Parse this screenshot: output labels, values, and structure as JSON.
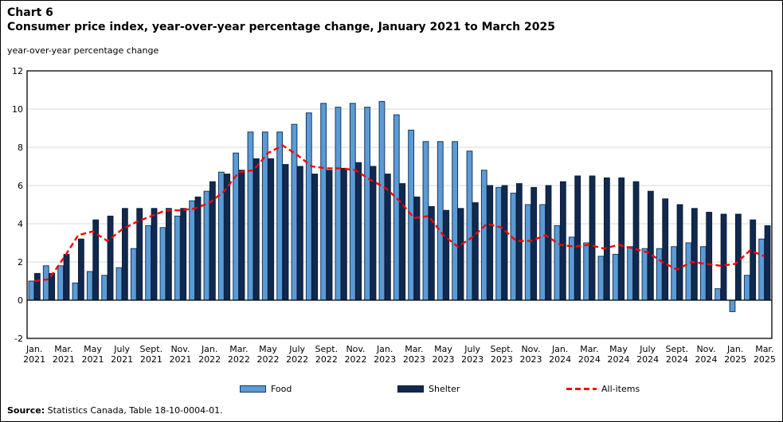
{
  "header": {
    "chart_number": "Chart 6",
    "title": "Consumer price index, year-over-year percentage change, January 2021 to March 2025",
    "axis_caption": "year-over-year percentage change"
  },
  "legend": {
    "items": [
      {
        "label": "Food"
      },
      {
        "label": "Shelter"
      },
      {
        "label": "All-items"
      }
    ]
  },
  "footer": {
    "source_label": "Source:",
    "source_text": "Statistics Canada, Table 18-10-0004-01."
  },
  "colors": {
    "food_fill": "#5B9BD5",
    "food_border": "#17375E",
    "shelter_fill": "#12294E",
    "shelter_border": "#091F3D",
    "all_items_line": "#FF0000",
    "gridline": "#D9D9D9",
    "axis": "#000000"
  },
  "chart_data": {
    "type": "bar",
    "title": "Consumer price index, year-over-year percentage change, January 2021 to March 2025",
    "xlabel": "",
    "ylabel": "year-over-year percentage change",
    "ylim": [
      -2,
      12
    ],
    "y_ticks": [
      12,
      10,
      8,
      6,
      4,
      2,
      0,
      -2
    ],
    "grid": true,
    "legend_position": "bottom",
    "categories": [
      "Jan. 2021",
      "Feb. 2021",
      "Mar. 2021",
      "Apr. 2021",
      "May 2021",
      "June 2021",
      "July 2021",
      "Aug. 2021",
      "Sept. 2021",
      "Oct. 2021",
      "Nov. 2021",
      "Dec. 2021",
      "Jan. 2022",
      "Feb. 2022",
      "Mar. 2022",
      "Apr. 2022",
      "May 2022",
      "June 2022",
      "July 2022",
      "Aug. 2022",
      "Sept. 2022",
      "Oct. 2022",
      "Nov. 2022",
      "Dec. 2022",
      "Jan. 2023",
      "Feb. 2023",
      "Mar. 2023",
      "Apr. 2023",
      "May 2023",
      "June 2023",
      "July 2023",
      "Aug. 2023",
      "Sept. 2023",
      "Oct. 2023",
      "Nov. 2023",
      "Dec. 2023",
      "Jan. 2024",
      "Feb. 2024",
      "Mar. 2024",
      "Apr. 2024",
      "May 2024",
      "June 2024",
      "July 2024",
      "Aug. 2024",
      "Sept. 2024",
      "Oct. 2024",
      "Nov. 2024",
      "Dec. 2024",
      "Jan. 2025",
      "Feb. 2025",
      "Mar. 2025"
    ],
    "series": [
      {
        "name": "Food",
        "type": "bar",
        "values": [
          1.0,
          1.8,
          1.8,
          0.9,
          1.5,
          1.3,
          1.7,
          2.7,
          3.9,
          3.8,
          4.4,
          5.2,
          5.7,
          6.7,
          7.7,
          8.8,
          8.8,
          8.8,
          9.2,
          9.8,
          10.3,
          10.1,
          10.3,
          10.1,
          10.4,
          9.7,
          8.9,
          8.3,
          8.3,
          8.3,
          7.8,
          6.8,
          5.9,
          5.6,
          5.0,
          5.0,
          3.9,
          3.3,
          3.0,
          2.3,
          2.4,
          2.8,
          2.7,
          2.7,
          2.8,
          3.0,
          2.8,
          0.6,
          -0.6,
          1.3,
          3.2
        ]
      },
      {
        "name": "Shelter",
        "type": "bar",
        "values": [
          1.4,
          1.4,
          2.4,
          3.2,
          4.2,
          4.4,
          4.8,
          4.8,
          4.8,
          4.8,
          4.8,
          5.4,
          6.2,
          6.6,
          6.8,
          7.4,
          7.4,
          7.1,
          7.0,
          6.6,
          6.8,
          6.9,
          7.2,
          7.0,
          6.6,
          6.1,
          5.4,
          4.9,
          4.7,
          4.8,
          5.1,
          6.0,
          6.0,
          6.1,
          5.9,
          6.0,
          6.2,
          6.5,
          6.5,
          6.4,
          6.4,
          6.2,
          5.7,
          5.3,
          5.0,
          4.8,
          4.6,
          4.5,
          4.5,
          4.2,
          3.9
        ]
      },
      {
        "name": "All-items",
        "type": "line",
        "style": "dashed",
        "values": [
          1.0,
          1.1,
          2.2,
          3.4,
          3.6,
          3.1,
          3.7,
          4.1,
          4.4,
          4.7,
          4.7,
          4.8,
          5.1,
          5.7,
          6.7,
          6.8,
          7.7,
          8.1,
          7.6,
          7.0,
          6.9,
          6.9,
          6.8,
          6.3,
          5.9,
          5.2,
          4.3,
          4.4,
          3.4,
          2.8,
          3.3,
          4.0,
          3.8,
          3.1,
          3.1,
          3.4,
          2.9,
          2.8,
          2.9,
          2.7,
          2.9,
          2.7,
          2.5,
          2.0,
          1.6,
          2.0,
          1.9,
          1.8,
          1.9,
          2.6,
          2.3
        ]
      }
    ]
  }
}
